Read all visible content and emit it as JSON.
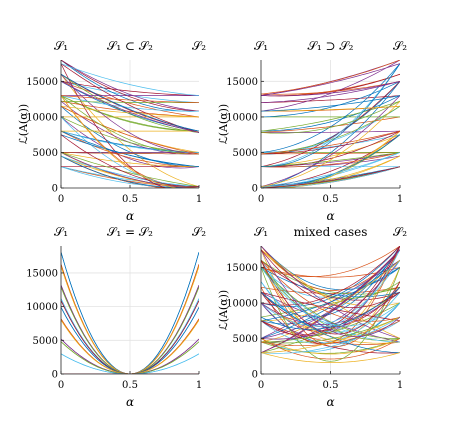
{
  "colors": [
    "#0072BD",
    "#D95319",
    "#EDB120",
    "#7E2F8E",
    "#77AC30",
    "#4DBEEE",
    "#A2142F"
  ],
  "chart_data": [
    {
      "type": "line",
      "title": "𝒮₁ ⊂ 𝒮₂",
      "left_label": "𝒮₁",
      "right_label": "𝒮₂",
      "xlabel": "α",
      "ylabel": "ℒ(A(α))",
      "xlim": [
        0,
        1
      ],
      "ylim": [
        0,
        18000
      ],
      "xticks": [
        "0",
        "0.5",
        "1"
      ],
      "yticks": [
        "0",
        "5000",
        "10000",
        "15000"
      ],
      "grid": true,
      "levels_at_alpha0": [
        18000,
        17500,
        16000,
        15000,
        13000,
        12200,
        11500,
        10000,
        8000,
        7500,
        5000,
        4500,
        3000
      ],
      "levels_at_alpha1": [
        13200,
        13000,
        12000,
        10800,
        10000,
        8000,
        7800,
        5000,
        4800,
        3000,
        200,
        0
      ]
    },
    {
      "type": "line",
      "title": "𝒮₁ ⊃ 𝒮₂",
      "left_label": "𝒮₁",
      "right_label": "𝒮₂",
      "xlabel": "α",
      "ylabel": "ℒ(A(α))",
      "xlim": [
        0,
        1
      ],
      "ylim": [
        0,
        18000
      ],
      "xticks": [
        "0",
        "0.5",
        "1"
      ],
      "yticks": [
        "0",
        "5000",
        "10000",
        "15000"
      ],
      "grid": true,
      "levels_at_alpha0": [
        13200,
        13000,
        12000,
        10800,
        10000,
        8000,
        7800,
        5000,
        4800,
        3000,
        200,
        0
      ],
      "levels_at_alpha1": [
        18000,
        17500,
        16000,
        15000,
        13000,
        12200,
        11500,
        10000,
        8000,
        7500,
        5000,
        4500,
        3000
      ]
    },
    {
      "type": "line",
      "title": "𝒮₁ = 𝒮₂",
      "left_label": "𝒮₁",
      "right_label": "𝒮₂",
      "xlabel": "α",
      "ylabel": "",
      "xlim": [
        0,
        1
      ],
      "ylim": [
        0,
        19000
      ],
      "xticks": [
        "0",
        "0.5",
        "1"
      ],
      "yticks": [
        "0",
        "5000",
        "10000",
        "15000"
      ],
      "grid": true,
      "levels": [
        18100,
        16300,
        16000,
        13200,
        12900,
        11200,
        10900,
        9900,
        8200,
        8000,
        5200,
        4800,
        3000,
        0
      ]
    },
    {
      "type": "line",
      "title": "mixed cases",
      "left_label": "𝒮₁",
      "right_label": "𝒮₂",
      "xlabel": "α",
      "ylabel": "ℒ(A(α))",
      "xlim": [
        0,
        1
      ],
      "ylim": [
        0,
        18000
      ],
      "xticks": [
        "0",
        "0.5",
        "1"
      ],
      "yticks": [
        "0",
        "5000",
        "10000",
        "15000"
      ],
      "grid": true,
      "levels_at_alpha0": [
        18000,
        17500,
        16000,
        15000,
        13000,
        12200,
        11500,
        10000,
        8000,
        7500,
        5000,
        4500,
        3000
      ],
      "levels_at_alpha1": [
        18000,
        17500,
        16000,
        15000,
        13000,
        12200,
        11500,
        10000,
        8000,
        7500,
        5000,
        4500,
        3000
      ]
    }
  ]
}
